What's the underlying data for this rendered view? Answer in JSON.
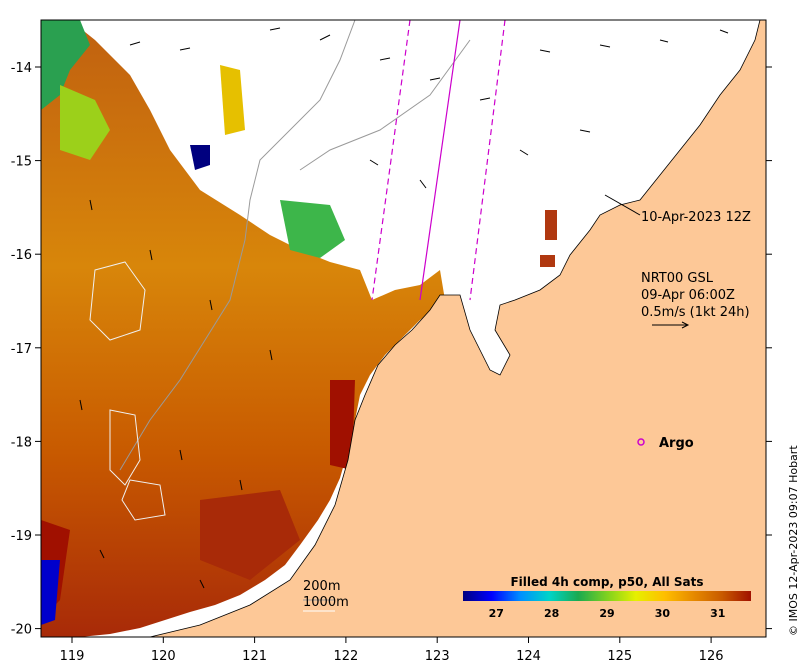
{
  "map": {
    "x_ticks": [
      "119",
      "120",
      "121",
      "122",
      "123",
      "124",
      "125",
      "126"
    ],
    "y_ticks": [
      "-14",
      "-15",
      "-16",
      "-17",
      "-18",
      "-19",
      "-20"
    ],
    "colors": {
      "land": "#fdc897",
      "no_data": "#ffffff",
      "glider_track": "#cc00cc",
      "contour": "#9a9a9a"
    }
  },
  "annotations": {
    "track_time": "10-Apr-2023 12Z",
    "currents_source": "NRT00 GSL",
    "currents_time": "09-Apr 06:00Z",
    "scale_arrow": "0.5m/s (1kt 24h)",
    "argo_label": "Argo",
    "contour_200": "200m",
    "contour_1000": "1000m"
  },
  "colorbar": {
    "title": "Filled 4h comp, p50, All Sats",
    "ticks": [
      "27",
      "28",
      "29",
      "30",
      "31"
    ],
    "range": [
      26.4,
      31.6
    ],
    "colors": [
      "#00007f",
      "#0000ff",
      "#0090ff",
      "#00d4c8",
      "#1aaa50",
      "#7fd11f",
      "#e6f000",
      "#ffbf00",
      "#e68a00",
      "#c85a00",
      "#a01000"
    ]
  },
  "credit": "© IMOS 12-Apr-2023 09:07 Hobart"
}
